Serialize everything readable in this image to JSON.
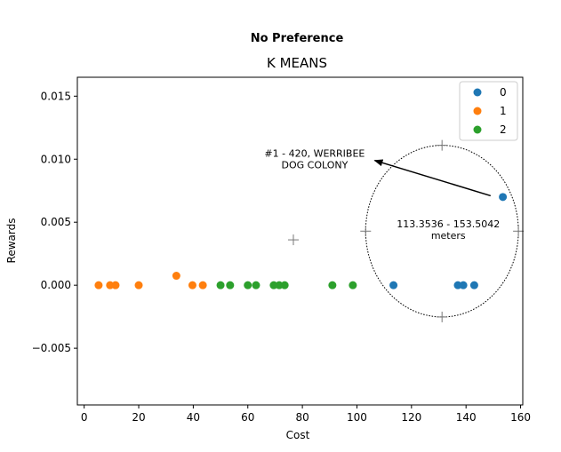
{
  "header": {
    "preference": "No Preference"
  },
  "chart_data": {
    "type": "scatter",
    "title": "K MEANS",
    "xlabel": "Cost",
    "ylabel": "Rewards",
    "xlim": [
      -2.5,
      160.8
    ],
    "ylim": [
      -0.0095,
      0.0165
    ],
    "xticks": [
      0,
      20,
      40,
      60,
      80,
      100,
      120,
      140,
      160
    ],
    "yticks": [
      -0.005,
      0.0,
      0.005,
      0.01,
      0.015
    ],
    "ytick_labels": [
      "−0.005",
      "0.000",
      "0.005",
      "0.010",
      "0.015"
    ],
    "legend_position": "top-right",
    "series": [
      {
        "name": "0",
        "color": "#1f77b4",
        "x": [
          113.4,
          137.0,
          139.0,
          143.0,
          153.5
        ],
        "y": [
          0,
          0,
          0,
          0,
          0.007
        ]
      },
      {
        "name": "1",
        "color": "#ff7f0e",
        "x": [
          5.3,
          9.5,
          11.5,
          20.0,
          33.8,
          39.7,
          43.5
        ],
        "y": [
          0,
          0,
          0,
          0,
          0.00075,
          0,
          0
        ]
      },
      {
        "name": "2",
        "color": "#2ca02c",
        "x": [
          50.0,
          53.5,
          60.0,
          63.0,
          69.5,
          71.5,
          73.5,
          91.0,
          98.5
        ],
        "y": [
          0,
          0,
          0,
          0,
          0,
          0,
          0,
          0,
          0
        ]
      }
    ],
    "annotations": [
      {
        "line1": "#1 - 420, WERRIBEE",
        "line2": "DOG COLONY",
        "text_at": [
          84.5,
          0.0102
        ],
        "arrow_from": [
          149.0,
          0.0071
        ],
        "arrow_to": [
          106.5,
          0.0099
        ]
      },
      {
        "line1": "113.3536 - 153.5042",
        "line2": "meters",
        "text_at": [
          133.5,
          0.0046
        ]
      }
    ],
    "range_ellipse": {
      "cx": 131.2,
      "cy": 0.00429,
      "rx": 28.0,
      "ry": 0.00681
    },
    "crosshair_markers": [
      [
        76.7,
        0.0036
      ],
      [
        131.2,
        0.0111
      ],
      [
        131.2,
        -0.00252
      ],
      [
        103.2,
        0.00429
      ],
      [
        159.2,
        0.00429
      ]
    ]
  }
}
